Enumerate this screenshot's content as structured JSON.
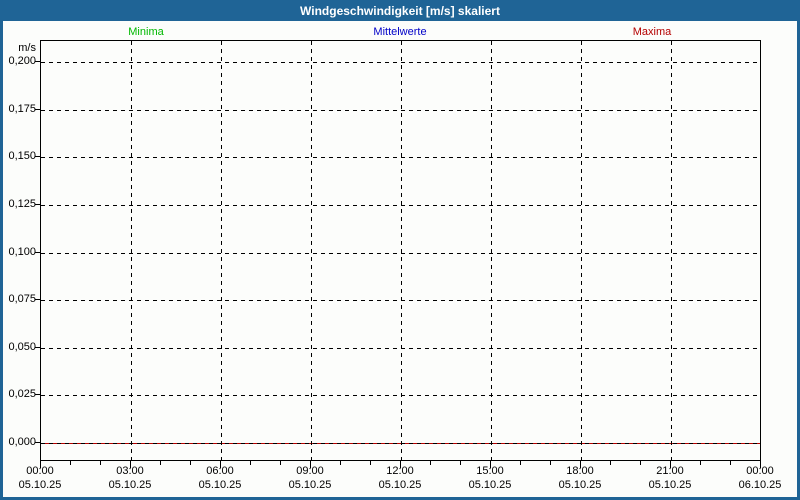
{
  "window": {
    "title": "Windgeschwindigkeit [m/s] skaliert"
  },
  "colors": {
    "titlebar_bg": "#1f6496",
    "frame_border": "#1f6496",
    "background": "#fcfdfb",
    "grid": "#000000",
    "minima": "#00b800",
    "mittelwerte": "#0000c8",
    "maxima": "#b40000"
  },
  "chart_data": {
    "type": "line",
    "title": "Windgeschwindigkeit [m/s] skaliert",
    "unit_label": "m/s",
    "grid": "dashed",
    "legend_position": "top",
    "ylim": [
      -0.01,
      0.211
    ],
    "y_ticks": [
      {
        "value": 0.2,
        "label": "0,200"
      },
      {
        "value": 0.175,
        "label": "0,175"
      },
      {
        "value": 0.15,
        "label": "0,150"
      },
      {
        "value": 0.125,
        "label": "0,125"
      },
      {
        "value": 0.1,
        "label": "0,100"
      },
      {
        "value": 0.075,
        "label": "0,075"
      },
      {
        "value": 0.05,
        "label": "0,050"
      },
      {
        "value": 0.025,
        "label": "0,025"
      },
      {
        "value": 0.0,
        "label": "0,000"
      }
    ],
    "x_ticks": [
      {
        "time": "00:00",
        "date": "05.10.25"
      },
      {
        "time": "03:00",
        "date": "05.10.25"
      },
      {
        "time": "06:00",
        "date": "05.10.25"
      },
      {
        "time": "09:00",
        "date": "05.10.25"
      },
      {
        "time": "12:00",
        "date": "05.10.25"
      },
      {
        "time": "15:00",
        "date": "05.10.25"
      },
      {
        "time": "18:00",
        "date": "05.10.25"
      },
      {
        "time": "21:00",
        "date": "05.10.25"
      },
      {
        "time": "00:00",
        "date": "06.10.25"
      }
    ],
    "major_tick_interval_hours": 3,
    "minor_tick_interval_hours": 1,
    "series": [
      {
        "name": "Minima",
        "color": "#00b800",
        "values": [
          0,
          0,
          0,
          0,
          0,
          0,
          0,
          0,
          0
        ]
      },
      {
        "name": "Mittelwerte",
        "color": "#0000c8",
        "values": [
          0,
          0,
          0,
          0,
          0,
          0,
          0,
          0,
          0
        ]
      },
      {
        "name": "Maxima",
        "color": "#b40000",
        "values": [
          0,
          0,
          0,
          0,
          0,
          0,
          0,
          0,
          0
        ]
      }
    ]
  }
}
